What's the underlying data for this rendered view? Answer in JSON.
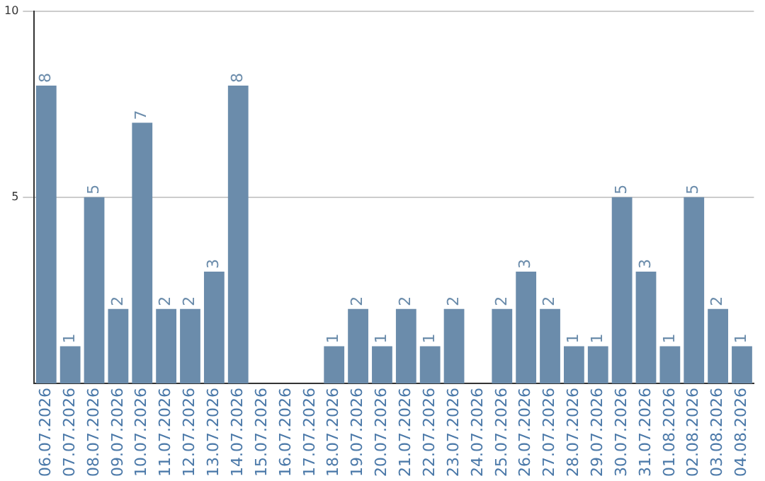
{
  "chart_data": {
    "type": "bar",
    "categories": [
      "06.07.2026",
      "07.07.2026",
      "08.07.2026",
      "09.07.2026",
      "10.07.2026",
      "11.07.2026",
      "12.07.2026",
      "13.07.2026",
      "14.07.2026",
      "15.07.2026",
      "16.07.2026",
      "17.07.2026",
      "18.07.2026",
      "19.07.2026",
      "20.07.2026",
      "21.07.2026",
      "22.07.2026",
      "23.07.2026",
      "24.07.2026",
      "25.07.2026",
      "26.07.2026",
      "27.07.2026",
      "28.07.2026",
      "29.07.2026",
      "30.07.2026",
      "31.07.2026",
      "01.08.2026",
      "02.08.2026",
      "03.08.2026",
      "04.08.2026"
    ],
    "values": [
      8,
      1,
      5,
      2,
      7,
      2,
      2,
      3,
      8,
      0,
      0,
      0,
      1,
      2,
      1,
      2,
      1,
      2,
      0,
      2,
      3,
      2,
      1,
      1,
      5,
      3,
      1,
      5,
      2,
      1
    ],
    "value_labels": [
      "8",
      "1",
      "5",
      "2",
      "7",
      "2",
      "2",
      "3",
      "8",
      null,
      null,
      null,
      "1",
      "2",
      "1",
      "2",
      "1",
      "2",
      null,
      "2",
      "3",
      "2",
      "1",
      "1",
      "5",
      "3",
      "1",
      "5",
      "2",
      "1"
    ],
    "color": "#6b8cab",
    "ylim": [
      0,
      10
    ],
    "yticks": [
      5,
      10
    ],
    "grid": "y",
    "legend": false
  }
}
